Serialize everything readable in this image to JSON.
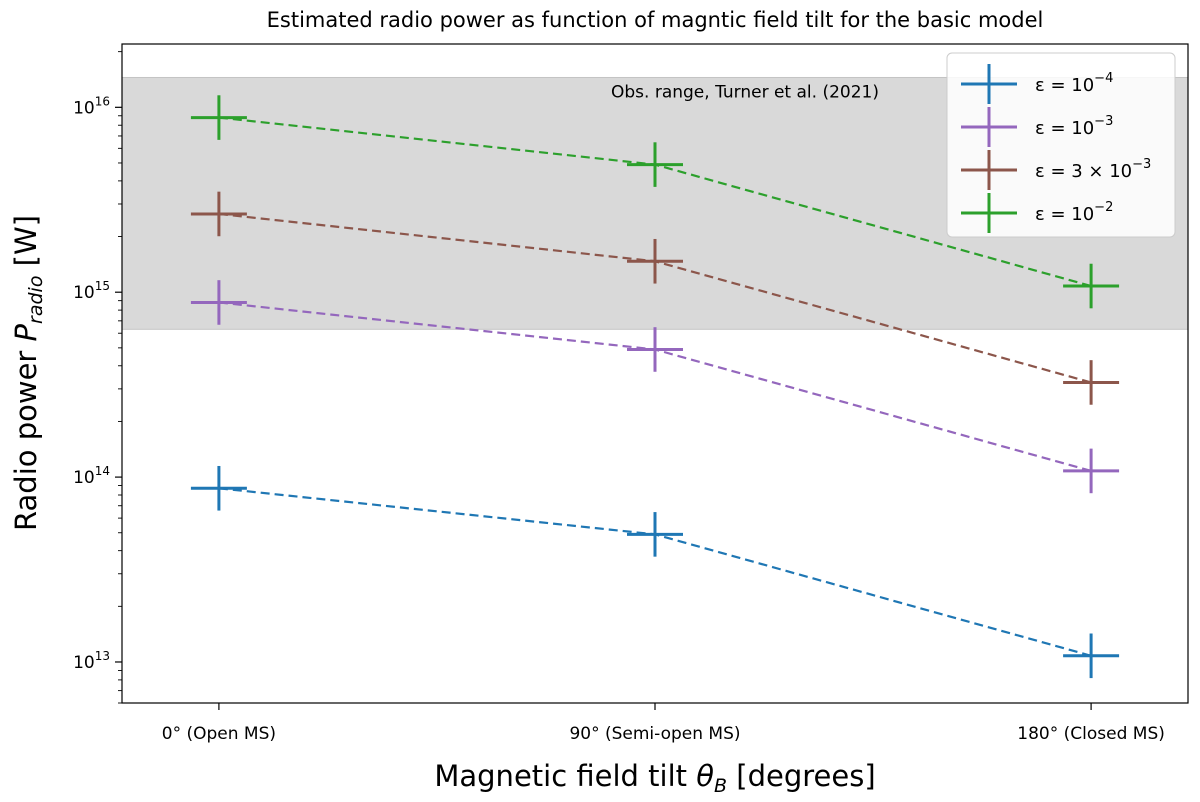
{
  "chart_data": {
    "type": "line",
    "title": "Estimated radio power as function of magntic field tilt for the basic model",
    "xlabel": "Magnetic field tilt θ_B [degrees]",
    "xlabel_main": "Magnetic field tilt ",
    "xlabel_symbol": "θ",
    "xlabel_sub": "B",
    "xlabel_unit": " [degrees]",
    "ylabel": "Radio power P_radio [W]",
    "ylabel_main": "Radio power ",
    "ylabel_symbol": "P",
    "ylabel_sub": "radio",
    "ylabel_unit": " [W]",
    "categories": [
      "0° (Open MS)",
      "90° (Semi-open MS)",
      "180° (Closed MS)"
    ],
    "x": [
      0,
      90,
      180
    ],
    "xlim": [
      -20,
      200
    ],
    "yscale": "log",
    "ylim": [
      6000000000000.0,
      2.2e+16
    ],
    "ytick_values": [
      10000000000000.0,
      100000000000000.0,
      1000000000000000.0,
      1e+16
    ],
    "ytick_labels": [
      {
        "base": "10",
        "exp": "13"
      },
      {
        "base": "10",
        "exp": "14"
      },
      {
        "base": "10",
        "exp": "15"
      },
      {
        "base": "10",
        "exp": "16"
      }
    ],
    "shaded_band": {
      "label": "Obs. range, Turner et al. (2021)",
      "ymin": 630000000000000.0,
      "ymax": 1.45e+16,
      "color": "#d9d9d9"
    },
    "series": [
      {
        "name": "ε = 10^-4",
        "label_pre": "ε = 10",
        "label_exp": "−4",
        "color": "#1f77b4",
        "values": [
          87000000000000.0,
          49000000000000.0,
          10800000000000.0
        ],
        "err_factor": 1.32
      },
      {
        "name": "ε = 10^-3",
        "label_pre": "ε = 10",
        "label_exp": "−3",
        "color": "#9467bd",
        "values": [
          880000000000000.0,
          490000000000000.0,
          108000000000000.0
        ],
        "err_factor": 1.32
      },
      {
        "name": "ε = 3 × 10^-3",
        "label_pre": "ε = 3 × 10",
        "label_exp": "−3",
        "color": "#8c564b",
        "values": [
          2650000000000000.0,
          1470000000000000.0,
          325000000000000.0
        ],
        "err_factor": 1.32
      },
      {
        "name": "ε = 10^-2",
        "label_pre": "ε = 10",
        "label_exp": "−2",
        "color": "#2ca02c",
        "values": [
          8800000000000000.0,
          4900000000000000.0,
          1080000000000000.0
        ],
        "err_factor": 1.32
      }
    ],
    "legend_position": "top-right",
    "grid": false
  }
}
